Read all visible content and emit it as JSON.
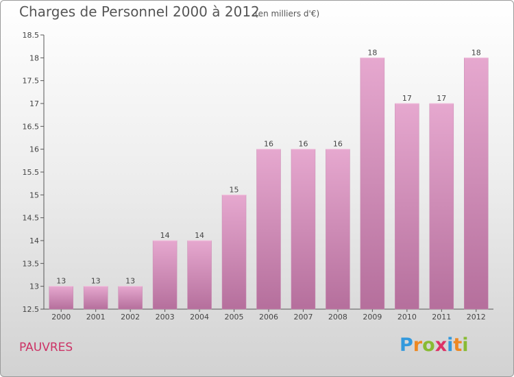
{
  "chart_data": {
    "type": "bar",
    "title": "Charges de Personnel 2000 à 2012",
    "subtitle": "(en milliers d'€)",
    "categories": [
      "2000",
      "2001",
      "2002",
      "2003",
      "2004",
      "2005",
      "2006",
      "2007",
      "2008",
      "2009",
      "2010",
      "2011",
      "2012"
    ],
    "values": [
      13,
      13,
      13,
      14,
      14,
      15,
      16,
      16,
      16,
      18,
      17,
      17,
      18
    ],
    "ylim": [
      12.5,
      18.5
    ],
    "yticks": [
      "12.5",
      "13",
      "13.5",
      "14",
      "14.5",
      "15",
      "15.5",
      "16",
      "16.5",
      "17",
      "17.5",
      "18",
      "18.5"
    ],
    "xlabel": "",
    "ylabel": "",
    "grid": false,
    "bar_color": "#d98ab8"
  },
  "commune": "PAUVRES",
  "logo": {
    "letters": [
      "P",
      "r",
      "o",
      "x",
      "i",
      "t",
      "i"
    ],
    "colors": [
      "#3399dd",
      "#ee8822",
      "#88bb33",
      "#dd3366",
      "#3399dd",
      "#ee8822",
      "#88bb33"
    ]
  }
}
